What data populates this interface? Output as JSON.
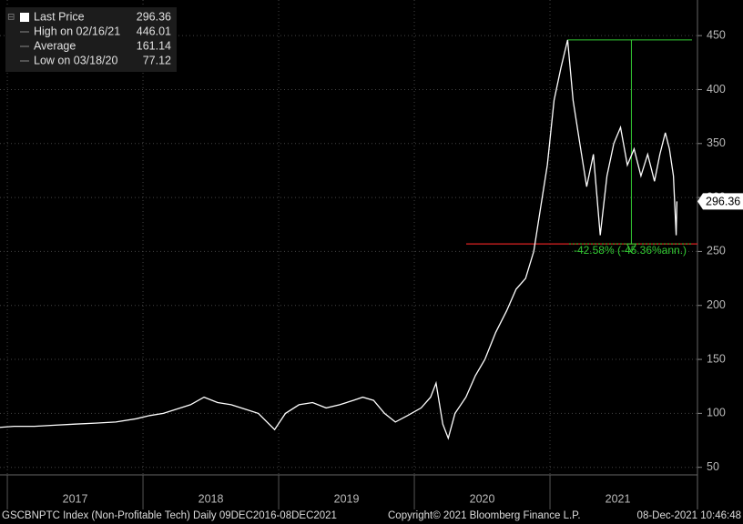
{
  "chart_data": {
    "type": "line",
    "series": [
      {
        "name": "Last Price",
        "color": "#ffffff",
        "x": [
          2016.94,
          2017.05,
          2017.2,
          2017.35,
          2017.5,
          2017.65,
          2017.8,
          2017.95,
          2018.05,
          2018.15,
          2018.25,
          2018.35,
          2018.45,
          2018.55,
          2018.65,
          2018.75,
          2018.85,
          2018.97,
          2019.05,
          2019.15,
          2019.25,
          2019.35,
          2019.45,
          2019.55,
          2019.62,
          2019.7,
          2019.78,
          2019.86,
          2019.95,
          2020.05,
          2020.12,
          2020.16,
          2020.21,
          2020.25,
          2020.3,
          2020.38,
          2020.45,
          2020.52,
          2020.6,
          2020.68,
          2020.75,
          2020.82,
          2020.88,
          2020.93,
          2020.98,
          2021.03,
          2021.08,
          2021.13,
          2021.17,
          2021.22,
          2021.27,
          2021.32,
          2021.37,
          2021.42,
          2021.47,
          2021.52,
          2021.57,
          2021.62,
          2021.67,
          2021.72,
          2021.77,
          2021.81,
          2021.85,
          2021.88,
          2021.91,
          2021.93,
          2021.935
        ],
        "values": [
          87,
          88,
          88,
          89,
          90,
          91,
          92,
          95,
          98,
          100,
          104,
          108,
          115,
          110,
          108,
          104,
          100,
          85,
          100,
          108,
          110,
          105,
          108,
          112,
          115,
          112,
          100,
          92,
          98,
          105,
          115,
          128,
          90,
          77,
          100,
          115,
          135,
          150,
          175,
          195,
          215,
          225,
          250,
          290,
          330,
          390,
          420,
          446.01,
          390,
          350,
          310,
          340,
          265,
          320,
          350,
          365,
          330,
          345,
          320,
          340,
          315,
          340,
          360,
          345,
          320,
          265,
          296.36
        ]
      }
    ],
    "xlim": [
      2016.946,
      2022.087
    ],
    "xticks": [
      {
        "value": 2017.5,
        "label": "2017"
      },
      {
        "value": 2018.5,
        "label": "2018"
      },
      {
        "value": 2019.5,
        "label": "2019"
      },
      {
        "value": 2020.5,
        "label": "2020"
      },
      {
        "value": 2021.5,
        "label": "2021"
      }
    ],
    "ylim": [
      43,
      483
    ],
    "yticks": [
      50,
      100,
      150,
      200,
      250,
      300,
      350,
      400,
      450
    ],
    "grid": true,
    "last_price_tag": 296.36,
    "legend": [
      {
        "label": "Last Price",
        "value": 296.36
      },
      {
        "label": "High on 02/16/21",
        "value": 446.01
      },
      {
        "label": "Average",
        "value": 161.14
      },
      {
        "label": "Low on 03/18/20",
        "value": 77.12
      }
    ],
    "drawdown": {
      "peak": 446.01,
      "trough": 257,
      "peak_x": 2021.13,
      "arrow_x": 2021.6,
      "label": "-42.58% (-45.36%ann.)"
    },
    "footer": {
      "left": "GSCBNPTC Index (Non-Profitable Tech)  Daily 09DEC2016-08DEC2021",
      "center": "Copyright© 2021 Bloomberg Finance L.P.",
      "right": "08-Dec-2021 10:46:48"
    }
  }
}
